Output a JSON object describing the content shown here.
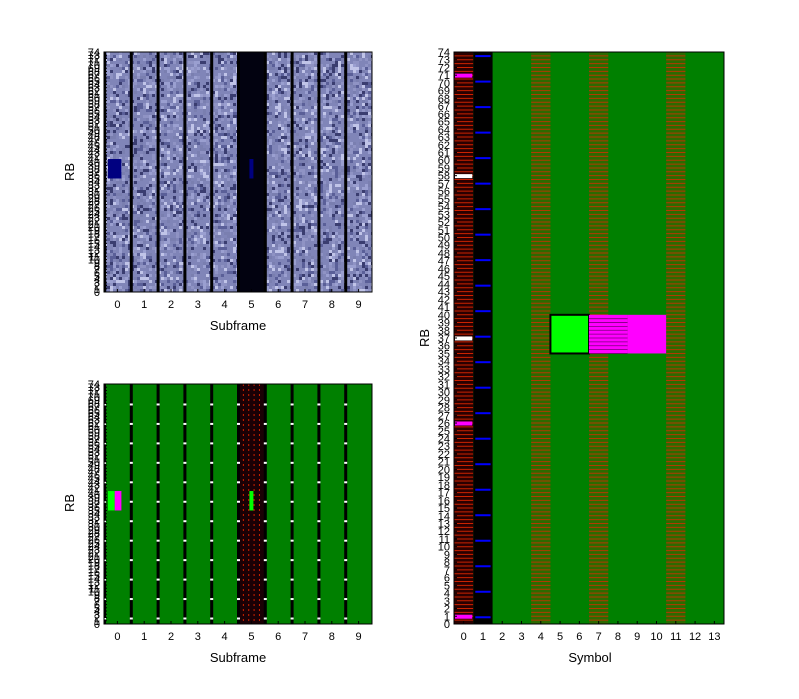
{
  "colors": {
    "background": "#ffffff",
    "noise_palette": [
      "#7a7fb0",
      "#9a9fd0",
      "#5a5f98",
      "#c0c4e8",
      "#3a3d70",
      "#8f93c4"
    ],
    "green": "#008000",
    "bright_green": "#00ff00",
    "magenta": "#ff00ff",
    "navy": "#000080",
    "blue": "#0000ff",
    "red": "#cc2200",
    "black": "#000000",
    "white": "#ffffff"
  },
  "chart_data": [
    {
      "type": "heatmap",
      "id": "top-left",
      "xlabel": "Subframe",
      "ylabel": "RB",
      "x_ticks": [
        "0",
        "1",
        "2",
        "3",
        "4",
        "5",
        "6",
        "7",
        "8",
        "9"
      ],
      "y_tick_range": [
        0,
        74
      ],
      "xlim": [
        -0.5,
        9.5
      ],
      "ylim": [
        0,
        74
      ],
      "fill": "noise",
      "dark_columns": [
        5
      ],
      "column_separators": true,
      "blocks": [
        {
          "subframe": 0,
          "rb_start": 35,
          "rb_end": 41,
          "width": 0.5,
          "color": "navy"
        },
        {
          "subframe": 5,
          "rb_start": 35,
          "rb_end": 41,
          "width": 0.15,
          "color": "navy"
        }
      ]
    },
    {
      "type": "heatmap",
      "id": "bottom-left",
      "xlabel": "Subframe",
      "ylabel": "RB",
      "x_ticks": [
        "0",
        "1",
        "2",
        "3",
        "4",
        "5",
        "6",
        "7",
        "8",
        "9"
      ],
      "y_tick_range": [
        0,
        74
      ],
      "xlim": [
        -0.5,
        9.5
      ],
      "ylim": [
        0,
        74
      ],
      "fill": "green",
      "dark_columns": [
        5
      ],
      "column_separators": true,
      "blocks": [
        {
          "subframe": 0,
          "rb_start": 35,
          "rb_end": 41,
          "width": 0.5,
          "color": "magenta_green"
        },
        {
          "subframe": 5,
          "rb_start": 35,
          "rb_end": 41,
          "width": 0.15,
          "color": "bright_green"
        }
      ]
    },
    {
      "type": "heatmap",
      "id": "right",
      "xlabel": "Symbol",
      "ylabel": "RB",
      "x_ticks": [
        "0",
        "1",
        "2",
        "3",
        "4",
        "5",
        "6",
        "7",
        "8",
        "9",
        "10",
        "11",
        "12",
        "13"
      ],
      "y_tick_range": [
        0,
        74
      ],
      "xlim": [
        -0.5,
        13.5
      ],
      "ylim": [
        0,
        74
      ],
      "fill": "green",
      "control_region_symbols": [
        0,
        1
      ],
      "reference_signal_symbols": [
        0,
        4,
        7,
        11
      ],
      "blocks": [
        {
          "symbol_start": 5,
          "symbol_end": 6,
          "rb_start": 35,
          "rb_end": 40,
          "color": "bright_green"
        },
        {
          "symbol_start": 7,
          "symbol_end": 8,
          "rb_start": 35,
          "rb_end": 40,
          "color": "magenta_stripes"
        },
        {
          "symbol_start": 9,
          "symbol_end": 10,
          "rb_start": 35,
          "rb_end": 40,
          "color": "magenta"
        }
      ]
    }
  ]
}
